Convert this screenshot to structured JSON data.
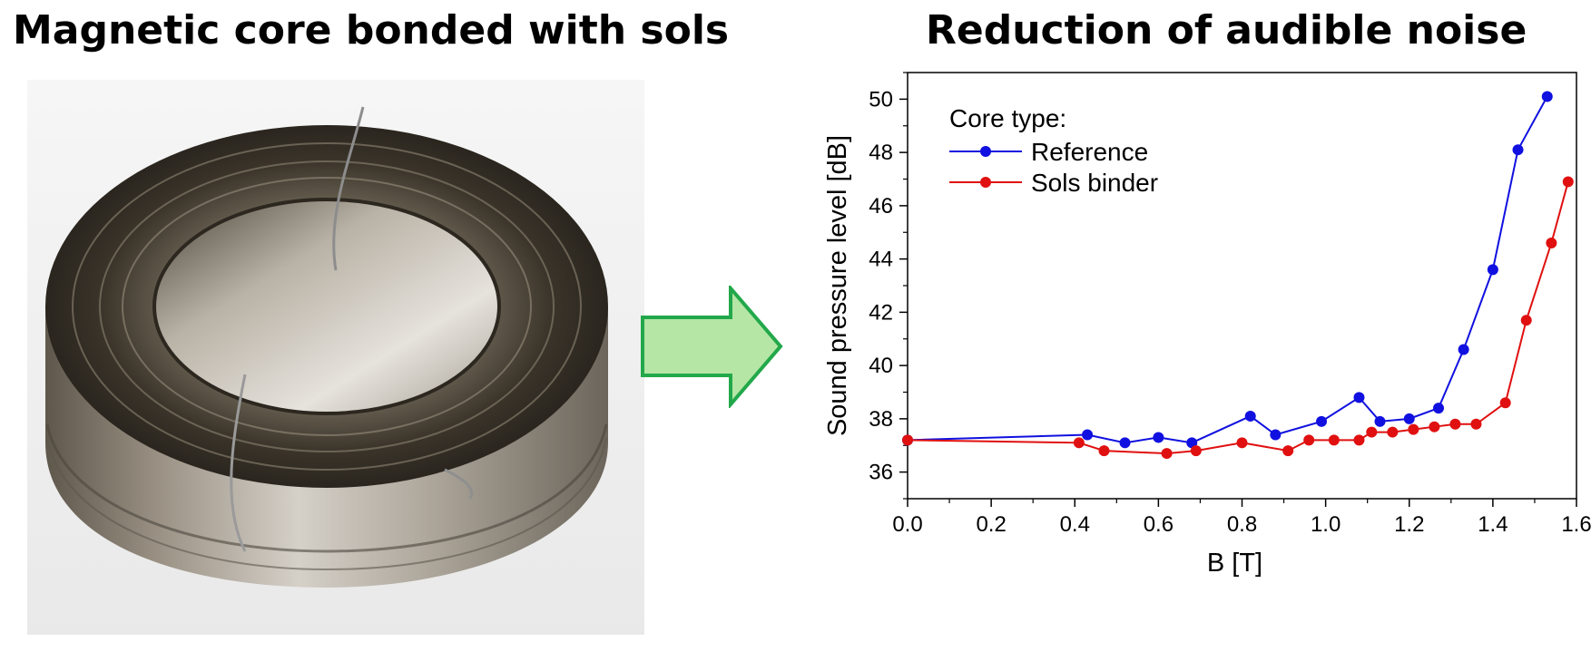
{
  "titles": {
    "left": "Magnetic core bonded with sols",
    "right": "Reduction of audible noise"
  },
  "colors": {
    "reference": "#1010e0",
    "sols": "#e01010",
    "arrow_fill": "#b5e6a6",
    "arrow_stroke": "#22a84a"
  },
  "chart_data": {
    "type": "line",
    "title": "",
    "xlabel": "B [T]",
    "ylabel": "Sound pressure level [dB]",
    "xlim": [
      0.0,
      1.6
    ],
    "ylim": [
      35,
      51
    ],
    "xticks": [
      "0.0",
      "0.2",
      "0.4",
      "0.6",
      "0.8",
      "1.0",
      "1.2",
      "1.4",
      "1.6"
    ],
    "yticks": [
      "36",
      "38",
      "40",
      "42",
      "44",
      "46",
      "48",
      "50"
    ],
    "legend": {
      "title": "Core type:",
      "placement": "top-left"
    },
    "series": [
      {
        "name": "Reference",
        "x": [
          0.0,
          0.43,
          0.52,
          0.6,
          0.68,
          0.82,
          0.88,
          0.99,
          1.08,
          1.13,
          1.2,
          1.27,
          1.33,
          1.4,
          1.46,
          1.53
        ],
        "y": [
          37.2,
          37.4,
          37.1,
          37.3,
          37.1,
          38.1,
          37.4,
          37.9,
          38.8,
          37.9,
          38.0,
          38.4,
          40.6,
          43.6,
          48.1,
          50.1
        ]
      },
      {
        "name": "Sols binder",
        "x": [
          0.0,
          0.41,
          0.47,
          0.62,
          0.69,
          0.8,
          0.91,
          0.96,
          1.02,
          1.08,
          1.11,
          1.16,
          1.21,
          1.26,
          1.31,
          1.36,
          1.43,
          1.48,
          1.54,
          1.58
        ],
        "y": [
          37.2,
          37.1,
          36.8,
          36.7,
          36.8,
          37.1,
          36.8,
          37.2,
          37.2,
          37.2,
          37.5,
          37.5,
          37.6,
          37.7,
          37.8,
          37.8,
          38.6,
          41.7,
          44.6,
          46.9
        ]
      }
    ]
  }
}
